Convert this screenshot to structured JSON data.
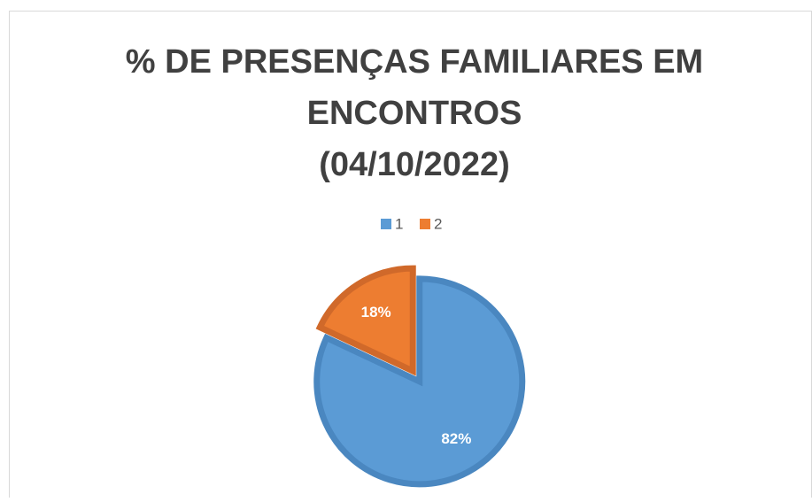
{
  "chart_data": {
    "type": "pie",
    "title": [
      "% DE PRESENÇAS FAMILIARES EM",
      "ENCONTROS",
      "(04/10/2022)"
    ],
    "categories": [
      "1",
      "2"
    ],
    "values": [
      82,
      18
    ],
    "value_labels": [
      "82%",
      "18%"
    ],
    "colors": [
      "#5b9bd5",
      "#ed7d31"
    ],
    "legend": "top"
  }
}
